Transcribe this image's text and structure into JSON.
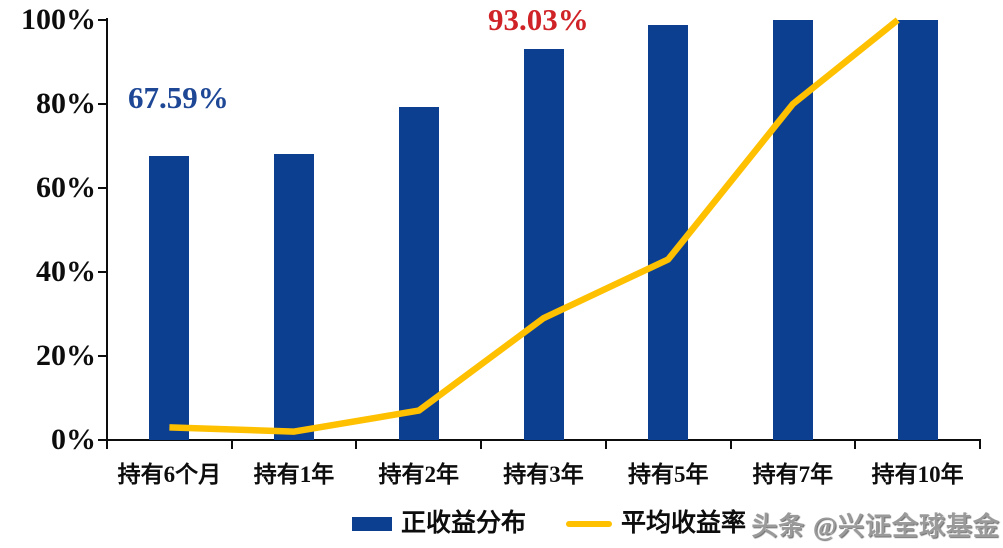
{
  "page": {
    "background": "#ffffff"
  },
  "chart_data": {
    "type": "bar",
    "subtype": "bar+line combo",
    "categories": [
      "持有6个月",
      "持有1年",
      "持有2年",
      "持有3年",
      "持有5年",
      "持有7年",
      "持有10年"
    ],
    "series": [
      {
        "name": "正收益分布",
        "type": "bar",
        "color": "#0d3f90",
        "values": [
          67.59,
          68.2,
          79.4,
          93.03,
          98.8,
          100,
          100
        ]
      },
      {
        "name": "平均收益率",
        "type": "line",
        "color": "#ffc000",
        "values": [
          3,
          2,
          7,
          29,
          43,
          80,
          100
        ],
        "visible_end": {
          "index": 5.84,
          "value": 100
        }
      }
    ],
    "y_ticks": [
      {
        "label": "0%",
        "value": 0
      },
      {
        "label": "20%",
        "value": 20
      },
      {
        "label": "40%",
        "value": 40
      },
      {
        "label": "60%",
        "value": 60
      },
      {
        "label": "80%",
        "value": 80
      },
      {
        "label": "100%",
        "value": 100
      }
    ],
    "ylim": [
      0,
      100
    ],
    "grid": "off",
    "legend_position": "bottom-center",
    "annotations": [
      {
        "text": "67.59%",
        "color": "#1e4796",
        "x": 128,
        "y": 82
      },
      {
        "text": "93.03%",
        "color": "#d02327",
        "x": 488,
        "y": 4
      }
    ]
  },
  "watermark": {
    "text": "头条 @兴证全球基金"
  }
}
